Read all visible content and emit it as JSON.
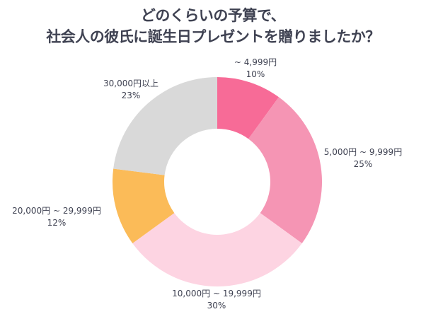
{
  "chart_data": {
    "type": "pie",
    "donut": true,
    "title": [
      "どのくらいの予算で、",
      "社会人の彼氏に誕生日プレゼントを贈りましたか？"
    ],
    "categories": [
      "~ 4,999円",
      "5,000円 ~ 9,999円",
      "10,000円 ~ 19,999円",
      "20,000円 ~ 29,999円",
      "30,000円以上"
    ],
    "values": [
      10,
      25,
      30,
      12,
      23
    ],
    "labels": [
      "10%",
      "25%",
      "30%",
      "12%",
      "23%"
    ],
    "colors": [
      "#f76b97",
      "#f595b4",
      "#fdd4e2",
      "#fbbb58",
      "#d9d9d9"
    ],
    "start": "top",
    "direction": "clockwise",
    "legend": "none"
  }
}
